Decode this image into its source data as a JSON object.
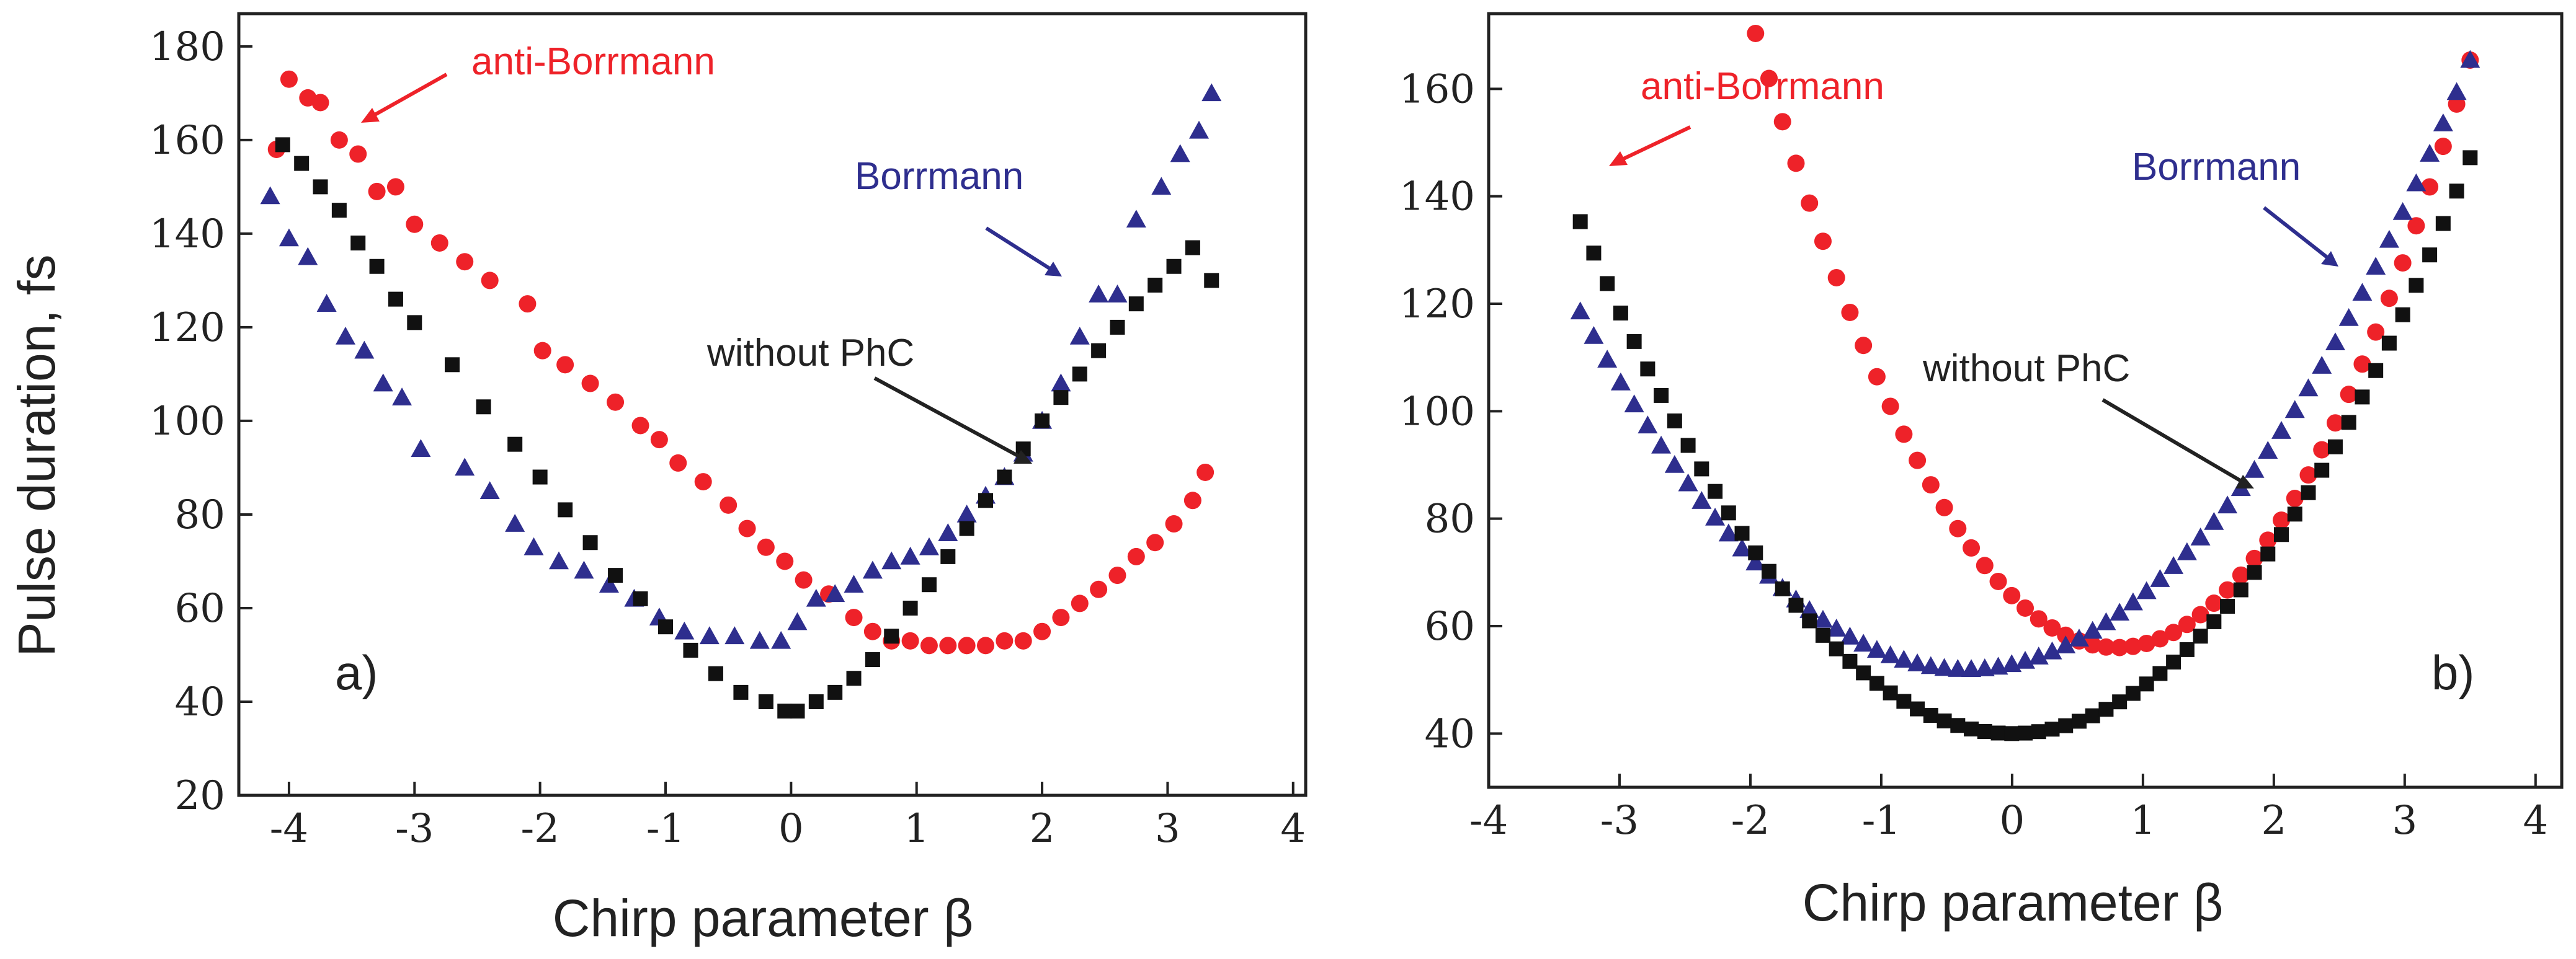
{
  "chart_data": [
    {
      "type": "scatter",
      "panel_label": "a)",
      "xlabel": "Chirp parameter β",
      "ylabel": "Pulse duration, fs",
      "xlim": [
        -4.4,
        4.1
      ],
      "ylim": [
        20,
        187
      ],
      "xticks": [
        -4,
        -3,
        -2,
        -1,
        0,
        1,
        2,
        3,
        4
      ],
      "yticks": [
        20,
        40,
        60,
        80,
        100,
        120,
        140,
        160,
        180
      ],
      "colors": {
        "anti_borrmann": "#ee2229",
        "borrmann": "#2e2e8e",
        "without_phc": "#111111"
      },
      "series": [
        {
          "key": "anti_borrmann",
          "marker": "circle",
          "x": [
            -4.1,
            -4.0,
            -3.85,
            -3.75,
            -3.6,
            -3.45,
            -3.3,
            -3.15,
            -3.0,
            -2.8,
            -2.6,
            -2.4,
            -2.1,
            -1.98,
            -1.8,
            -1.6,
            -1.4,
            -1.2,
            -1.05,
            -0.9,
            -0.7,
            -0.5,
            -0.35,
            -0.2,
            -0.05,
            0.1,
            0.3,
            0.5,
            0.65,
            0.8,
            0.95,
            1.1,
            1.25,
            1.4,
            1.55,
            1.7,
            1.85,
            2.0,
            2.15,
            2.3,
            2.45,
            2.6,
            2.75,
            2.9,
            3.05,
            3.2,
            3.3
          ],
          "y": [
            158,
            173,
            169,
            168,
            160,
            157,
            149,
            150,
            142,
            138,
            134,
            130,
            125,
            115,
            112,
            108,
            104,
            99,
            96,
            91,
            87,
            82,
            77,
            73,
            70,
            66,
            63,
            58,
            55,
            53,
            53,
            52,
            52,
            52,
            52,
            53,
            53,
            55,
            58,
            61,
            64,
            67,
            71,
            74,
            78,
            83,
            89
          ]
        },
        {
          "key": "borrmann",
          "marker": "triangle",
          "x": [
            -4.15,
            -4.0,
            -3.85,
            -3.7,
            -3.55,
            -3.4,
            -3.25,
            -3.1,
            -2.95,
            -2.6,
            -2.4,
            -2.2,
            -2.05,
            -1.85,
            -1.65,
            -1.45,
            -1.25,
            -1.05,
            -0.85,
            -0.65,
            -0.45,
            -0.25,
            -0.08,
            0.05,
            0.2,
            0.35,
            0.5,
            0.65,
            0.8,
            0.95,
            1.1,
            1.25,
            1.4,
            1.55,
            1.7,
            1.85,
            2.0,
            2.15,
            2.3,
            2.45,
            2.6,
            2.75,
            2.95,
            3.1,
            3.25,
            3.35
          ],
          "y": [
            148,
            139,
            135,
            125,
            118,
            115,
            108,
            105,
            94,
            90,
            85,
            78,
            73,
            70,
            68,
            65,
            62,
            58,
            55,
            54,
            54,
            53,
            53,
            57,
            62,
            63,
            65,
            68,
            70,
            71,
            73,
            76,
            80,
            84,
            88,
            93,
            100,
            108,
            118,
            127,
            127,
            143,
            150,
            157,
            162,
            170
          ]
        },
        {
          "key": "without_phc",
          "marker": "square",
          "x": [
            -4.05,
            -3.9,
            -3.75,
            -3.6,
            -3.45,
            -3.3,
            -3.15,
            -3.0,
            -2.7,
            -2.45,
            -2.2,
            -2.0,
            -1.8,
            -1.6,
            -1.4,
            -1.2,
            -1.0,
            -0.8,
            -0.6,
            -0.4,
            -0.2,
            -0.05,
            0.05,
            0.2,
            0.35,
            0.5,
            0.65,
            0.8,
            0.95,
            1.1,
            1.25,
            1.4,
            1.55,
            1.7,
            1.85,
            2.0,
            2.15,
            2.3,
            2.45,
            2.6,
            2.75,
            2.9,
            3.05,
            3.2,
            3.35
          ],
          "y": [
            159,
            155,
            150,
            145,
            138,
            133,
            126,
            121,
            112,
            103,
            95,
            88,
            81,
            74,
            67,
            62,
            56,
            51,
            46,
            42,
            40,
            38,
            38,
            40,
            42,
            45,
            49,
            54,
            60,
            65,
            71,
            77,
            83,
            88,
            94,
            100,
            105,
            110,
            115,
            120,
            125,
            129,
            133,
            137,
            130
          ]
        }
      ],
      "annotations": [
        {
          "text": "anti-Borrmann",
          "color": "#ee2229"
        },
        {
          "text": "Borrmann",
          "color": "#2e2e8e"
        },
        {
          "text": "without PhC",
          "color": "#222222"
        }
      ]
    },
    {
      "type": "scatter",
      "panel_label": "b)",
      "xlabel": "Chirp parameter β",
      "ylabel": "",
      "xlim": [
        -4.0,
        4.2
      ],
      "ylim": [
        30,
        174
      ],
      "xticks": [
        -4,
        -3,
        -2,
        -1,
        0,
        1,
        2,
        3,
        4
      ],
      "yticks": [
        40,
        60,
        80,
        100,
        120,
        140,
        160
      ],
      "colors": {
        "anti_borrmann": "#ee2229",
        "borrmann": "#2e2e8e",
        "without_phc": "#111111"
      },
      "curves": [
        {
          "key": "anti_borrmann",
          "marker": "circle",
          "x_start": -3.3,
          "x_end": 3.5,
          "count": 67,
          "vertex_x": 0.8,
          "vertex_y": 56,
          "coef": 15.0
        },
        {
          "key": "borrmann",
          "marker": "triangle",
          "x_start": -3.3,
          "x_end": 3.5,
          "count": 67,
          "vertex_x": -0.35,
          "vertex_y": 52,
          "coef": 7.65
        },
        {
          "key": "without_phc",
          "marker": "square",
          "x_start": -3.3,
          "x_end": 3.5,
          "count": 67,
          "vertex_x": 0.0,
          "vertex_y": 40,
          "coef": 8.75
        }
      ],
      "annotations": [
        {
          "text": "anti-Borrmann",
          "color": "#ee2229"
        },
        {
          "text": "Borrmann",
          "color": "#2e2e8e"
        },
        {
          "text": "without PhC",
          "color": "#222222"
        }
      ]
    }
  ]
}
